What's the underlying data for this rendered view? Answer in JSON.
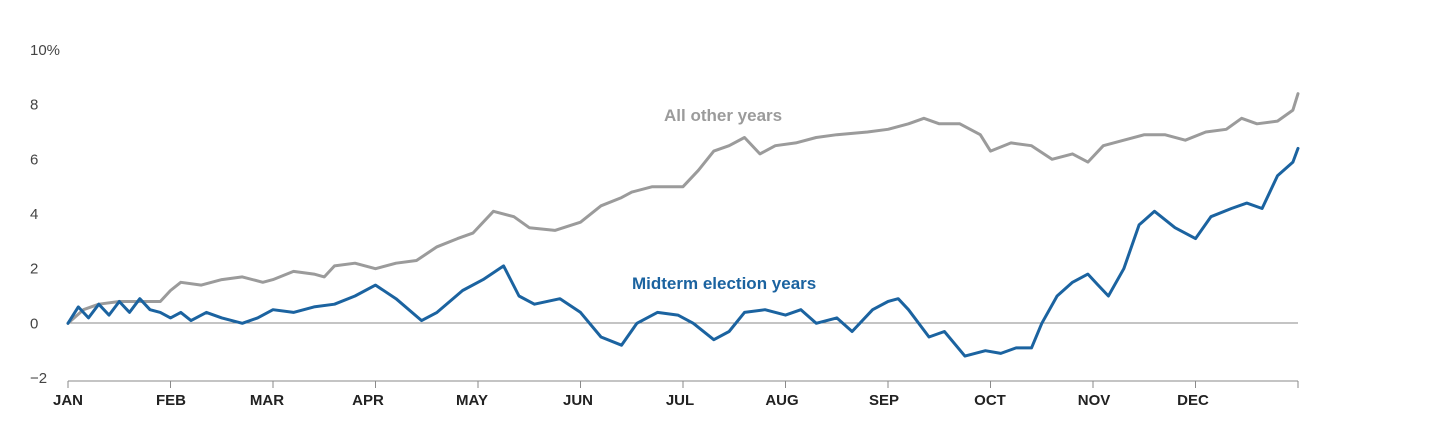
{
  "chart_data": {
    "type": "line",
    "ylim": [
      -2,
      10
    ],
    "y_unit": "%",
    "y_ticks": [
      -2,
      0,
      2,
      4,
      6,
      8,
      10
    ],
    "y_tick_labels": [
      "−2",
      "0",
      "2",
      "4",
      "6",
      "8",
      "10%"
    ],
    "x_ticks": [
      "JAN",
      "FEB",
      "MAR",
      "APR",
      "MAY",
      "JUN",
      "JUL",
      "AUG",
      "SEP",
      "OCT",
      "NOV",
      "DEC"
    ],
    "x_range_months": [
      0,
      12
    ],
    "baseline": 0,
    "series": [
      {
        "name": "All other years",
        "color": "#9b9b9b",
        "points": [
          [
            0.0,
            0.0
          ],
          [
            0.15,
            0.5
          ],
          [
            0.3,
            0.7
          ],
          [
            0.5,
            0.8
          ],
          [
            0.7,
            0.8
          ],
          [
            0.9,
            0.8
          ],
          [
            1.0,
            1.2
          ],
          [
            1.1,
            1.5
          ],
          [
            1.3,
            1.4
          ],
          [
            1.5,
            1.6
          ],
          [
            1.7,
            1.7
          ],
          [
            1.9,
            1.5
          ],
          [
            2.0,
            1.6
          ],
          [
            2.2,
            1.9
          ],
          [
            2.4,
            1.8
          ],
          [
            2.5,
            1.7
          ],
          [
            2.6,
            2.1
          ],
          [
            2.8,
            2.2
          ],
          [
            3.0,
            2.0
          ],
          [
            3.2,
            2.2
          ],
          [
            3.4,
            2.3
          ],
          [
            3.6,
            2.8
          ],
          [
            3.8,
            3.1
          ],
          [
            3.95,
            3.3
          ],
          [
            4.15,
            4.1
          ],
          [
            4.35,
            3.9
          ],
          [
            4.5,
            3.5
          ],
          [
            4.75,
            3.4
          ],
          [
            5.0,
            3.7
          ],
          [
            5.2,
            4.3
          ],
          [
            5.4,
            4.6
          ],
          [
            5.5,
            4.8
          ],
          [
            5.7,
            5.0
          ],
          [
            6.0,
            5.0
          ],
          [
            6.15,
            5.6
          ],
          [
            6.3,
            6.3
          ],
          [
            6.45,
            6.5
          ],
          [
            6.6,
            6.8
          ],
          [
            6.75,
            6.2
          ],
          [
            6.9,
            6.5
          ],
          [
            7.1,
            6.6
          ],
          [
            7.3,
            6.8
          ],
          [
            7.5,
            6.9
          ],
          [
            7.8,
            7.0
          ],
          [
            8.0,
            7.1
          ],
          [
            8.2,
            7.3
          ],
          [
            8.35,
            7.5
          ],
          [
            8.5,
            7.3
          ],
          [
            8.7,
            7.3
          ],
          [
            8.9,
            6.9
          ],
          [
            9.0,
            6.3
          ],
          [
            9.2,
            6.6
          ],
          [
            9.4,
            6.5
          ],
          [
            9.6,
            6.0
          ],
          [
            9.8,
            6.2
          ],
          [
            9.95,
            5.9
          ],
          [
            10.1,
            6.5
          ],
          [
            10.3,
            6.7
          ],
          [
            10.5,
            6.9
          ],
          [
            10.7,
            6.9
          ],
          [
            10.9,
            6.7
          ],
          [
            11.1,
            7.0
          ],
          [
            11.3,
            7.1
          ],
          [
            11.45,
            7.5
          ],
          [
            11.6,
            7.3
          ],
          [
            11.8,
            7.4
          ],
          [
            11.95,
            7.8
          ],
          [
            12.0,
            8.4
          ]
        ]
      },
      {
        "name": "Midterm election years",
        "color": "#1b63a0",
        "points": [
          [
            0.0,
            0.0
          ],
          [
            0.1,
            0.6
          ],
          [
            0.2,
            0.2
          ],
          [
            0.3,
            0.7
          ],
          [
            0.4,
            0.3
          ],
          [
            0.5,
            0.8
          ],
          [
            0.6,
            0.4
          ],
          [
            0.7,
            0.9
          ],
          [
            0.8,
            0.5
          ],
          [
            0.9,
            0.4
          ],
          [
            1.0,
            0.2
          ],
          [
            1.1,
            0.4
          ],
          [
            1.2,
            0.1
          ],
          [
            1.35,
            0.4
          ],
          [
            1.5,
            0.2
          ],
          [
            1.7,
            0.0
          ],
          [
            1.85,
            0.2
          ],
          [
            2.0,
            0.5
          ],
          [
            2.2,
            0.4
          ],
          [
            2.4,
            0.6
          ],
          [
            2.6,
            0.7
          ],
          [
            2.8,
            1.0
          ],
          [
            3.0,
            1.4
          ],
          [
            3.2,
            0.9
          ],
          [
            3.45,
            0.1
          ],
          [
            3.6,
            0.4
          ],
          [
            3.85,
            1.2
          ],
          [
            4.05,
            1.6
          ],
          [
            4.25,
            2.1
          ],
          [
            4.4,
            1.0
          ],
          [
            4.55,
            0.7
          ],
          [
            4.8,
            0.9
          ],
          [
            5.0,
            0.4
          ],
          [
            5.2,
            -0.5
          ],
          [
            5.4,
            -0.8
          ],
          [
            5.55,
            0.0
          ],
          [
            5.75,
            0.4
          ],
          [
            5.95,
            0.3
          ],
          [
            6.1,
            0.0
          ],
          [
            6.3,
            -0.6
          ],
          [
            6.45,
            -0.3
          ],
          [
            6.6,
            0.4
          ],
          [
            6.8,
            0.5
          ],
          [
            7.0,
            0.3
          ],
          [
            7.15,
            0.5
          ],
          [
            7.3,
            0.0
          ],
          [
            7.5,
            0.2
          ],
          [
            7.65,
            -0.3
          ],
          [
            7.85,
            0.5
          ],
          [
            8.0,
            0.8
          ],
          [
            8.1,
            0.9
          ],
          [
            8.2,
            0.5
          ],
          [
            8.4,
            -0.5
          ],
          [
            8.55,
            -0.3
          ],
          [
            8.75,
            -1.2
          ],
          [
            8.95,
            -1.0
          ],
          [
            9.1,
            -1.1
          ],
          [
            9.25,
            -0.9
          ],
          [
            9.4,
            -0.9
          ],
          [
            9.5,
            0.0
          ],
          [
            9.65,
            1.0
          ],
          [
            9.8,
            1.5
          ],
          [
            9.95,
            1.8
          ],
          [
            10.05,
            1.4
          ],
          [
            10.15,
            1.0
          ],
          [
            10.3,
            2.0
          ],
          [
            10.45,
            3.6
          ],
          [
            10.6,
            4.1
          ],
          [
            10.8,
            3.5
          ],
          [
            11.0,
            3.1
          ],
          [
            11.15,
            3.9
          ],
          [
            11.35,
            4.2
          ],
          [
            11.5,
            4.4
          ],
          [
            11.65,
            4.2
          ],
          [
            11.8,
            5.4
          ],
          [
            11.95,
            5.9
          ],
          [
            12.0,
            6.4
          ]
        ]
      }
    ]
  }
}
